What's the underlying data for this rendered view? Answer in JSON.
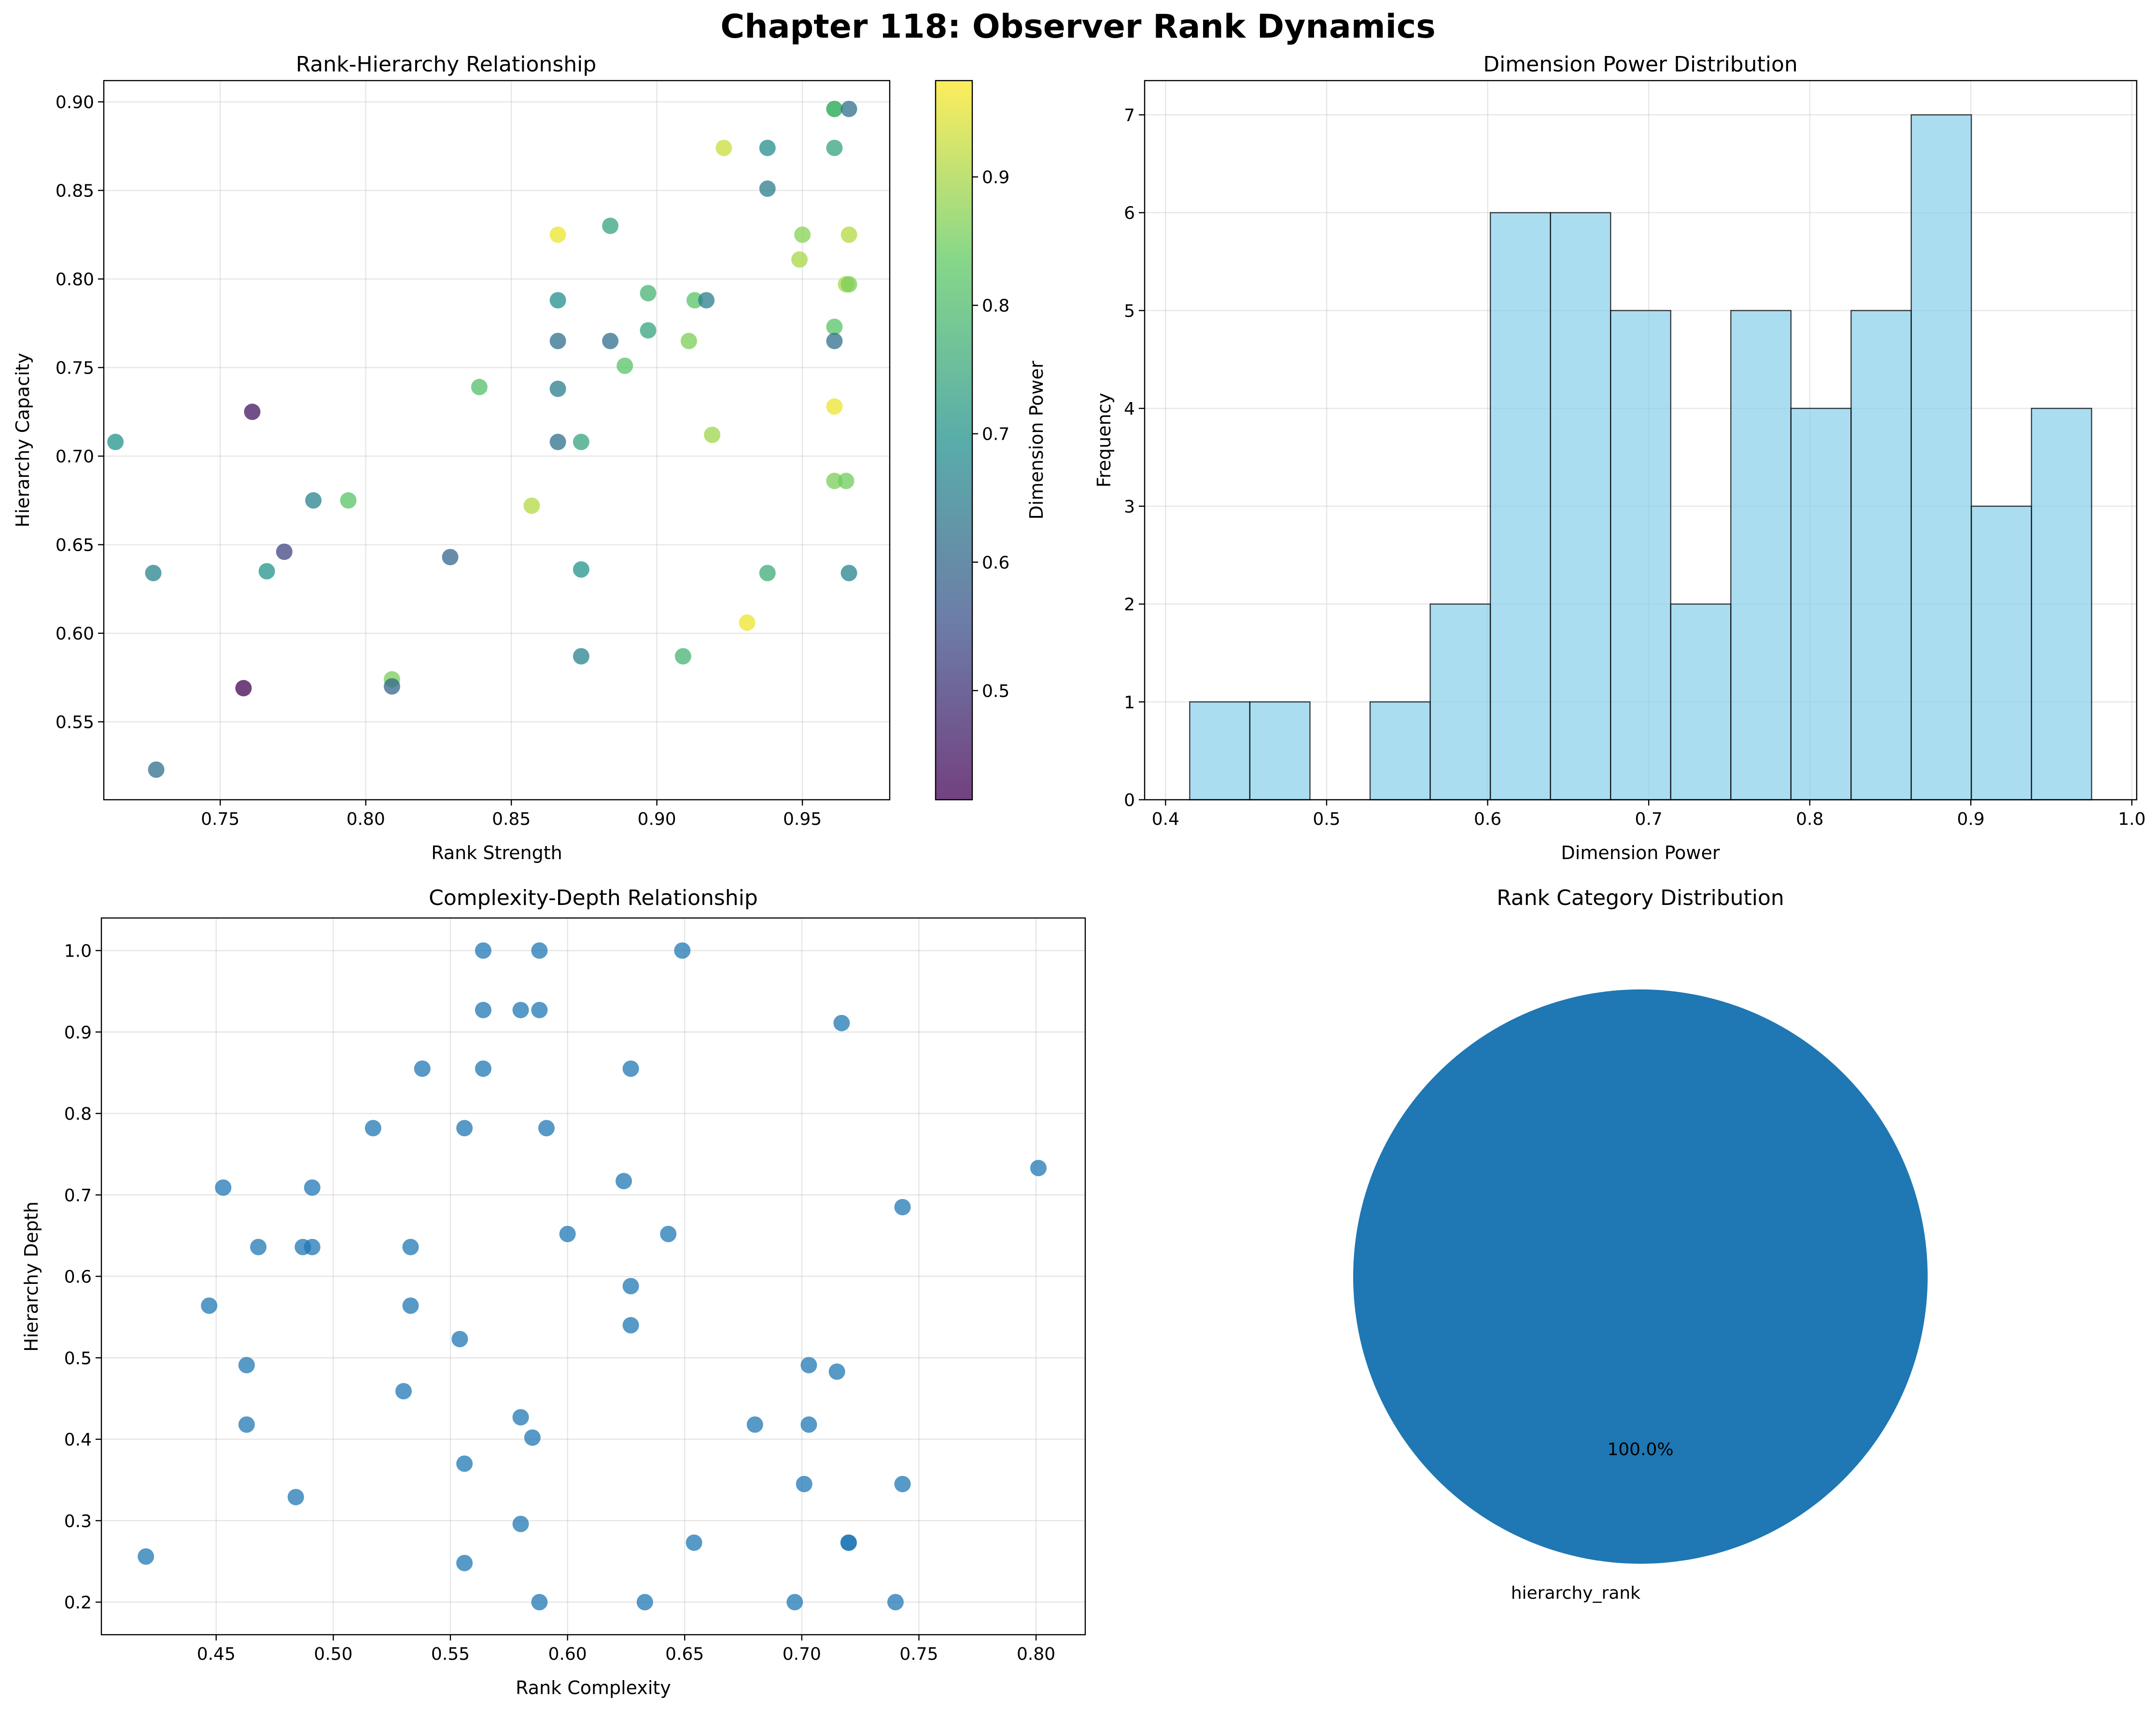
{
  "title": "Chapter 118: Observer Rank Dynamics",
  "chart_data": [
    {
      "type": "scatter",
      "title": "Rank-Hierarchy Relationship",
      "xlabel": "Rank Strength",
      "ylabel": "Hierarchy Capacity",
      "xlim": [
        0.71,
        0.98
      ],
      "ylim": [
        0.506,
        0.912
      ],
      "xticks": [
        0.75,
        0.8,
        0.85,
        0.9,
        0.95
      ],
      "yticks": [
        0.55,
        0.6,
        0.65,
        0.7,
        0.75,
        0.8,
        0.85,
        0.9
      ],
      "xtick_labels": [
        "0.75",
        "0.80",
        "0.85",
        "0.90",
        "0.95"
      ],
      "ytick_labels": [
        "0.55",
        "0.60",
        "0.65",
        "0.70",
        "0.75",
        "0.80",
        "0.85",
        "0.90"
      ],
      "grid": true,
      "colormap": "viridis",
      "colorbar": {
        "label": "Dimension Power",
        "range": [
          0.415,
          0.975
        ],
        "ticks": [
          0.5,
          0.6,
          0.7,
          0.8,
          0.9
        ],
        "tick_labels": [
          "0.5",
          "0.6",
          "0.7",
          "0.8",
          "0.9"
        ]
      },
      "points": [
        {
          "x": 0.714,
          "y": 0.708,
          "c": 0.7
        },
        {
          "x": 0.727,
          "y": 0.634,
          "c": 0.66
        },
        {
          "x": 0.728,
          "y": 0.523,
          "c": 0.62
        },
        {
          "x": 0.758,
          "y": 0.569,
          "c": 0.42
        },
        {
          "x": 0.761,
          "y": 0.725,
          "c": 0.45
        },
        {
          "x": 0.766,
          "y": 0.635,
          "c": 0.7
        },
        {
          "x": 0.772,
          "y": 0.646,
          "c": 0.53
        },
        {
          "x": 0.782,
          "y": 0.675,
          "c": 0.66
        },
        {
          "x": 0.794,
          "y": 0.675,
          "c": 0.82
        },
        {
          "x": 0.809,
          "y": 0.574,
          "c": 0.86
        },
        {
          "x": 0.809,
          "y": 0.57,
          "c": 0.6
        },
        {
          "x": 0.829,
          "y": 0.643,
          "c": 0.6
        },
        {
          "x": 0.839,
          "y": 0.739,
          "c": 0.81
        },
        {
          "x": 0.857,
          "y": 0.672,
          "c": 0.91
        },
        {
          "x": 0.866,
          "y": 0.825,
          "c": 0.96
        },
        {
          "x": 0.866,
          "y": 0.788,
          "c": 0.69
        },
        {
          "x": 0.866,
          "y": 0.765,
          "c": 0.62
        },
        {
          "x": 0.866,
          "y": 0.738,
          "c": 0.65
        },
        {
          "x": 0.866,
          "y": 0.708,
          "c": 0.62
        },
        {
          "x": 0.874,
          "y": 0.708,
          "c": 0.74
        },
        {
          "x": 0.874,
          "y": 0.636,
          "c": 0.7
        },
        {
          "x": 0.874,
          "y": 0.587,
          "c": 0.66
        },
        {
          "x": 0.884,
          "y": 0.83,
          "c": 0.74
        },
        {
          "x": 0.884,
          "y": 0.765,
          "c": 0.62
        },
        {
          "x": 0.889,
          "y": 0.751,
          "c": 0.82
        },
        {
          "x": 0.897,
          "y": 0.792,
          "c": 0.78
        },
        {
          "x": 0.897,
          "y": 0.771,
          "c": 0.74
        },
        {
          "x": 0.909,
          "y": 0.587,
          "c": 0.78
        },
        {
          "x": 0.911,
          "y": 0.765,
          "c": 0.86
        },
        {
          "x": 0.913,
          "y": 0.788,
          "c": 0.82
        },
        {
          "x": 0.917,
          "y": 0.788,
          "c": 0.65
        },
        {
          "x": 0.919,
          "y": 0.712,
          "c": 0.89
        },
        {
          "x": 0.923,
          "y": 0.874,
          "c": 0.93
        },
        {
          "x": 0.931,
          "y": 0.606,
          "c": 0.96
        },
        {
          "x": 0.938,
          "y": 0.874,
          "c": 0.69
        },
        {
          "x": 0.938,
          "y": 0.851,
          "c": 0.65
        },
        {
          "x": 0.938,
          "y": 0.634,
          "c": 0.76
        },
        {
          "x": 0.949,
          "y": 0.811,
          "c": 0.9
        },
        {
          "x": 0.95,
          "y": 0.825,
          "c": 0.87
        },
        {
          "x": 0.961,
          "y": 0.896,
          "c": 0.82
        },
        {
          "x": 0.961,
          "y": 0.896,
          "c": 0.78
        },
        {
          "x": 0.961,
          "y": 0.874,
          "c": 0.74
        },
        {
          "x": 0.961,
          "y": 0.773,
          "c": 0.82
        },
        {
          "x": 0.961,
          "y": 0.765,
          "c": 0.62
        },
        {
          "x": 0.961,
          "y": 0.728,
          "c": 0.96
        },
        {
          "x": 0.961,
          "y": 0.686,
          "c": 0.86
        },
        {
          "x": 0.965,
          "y": 0.797,
          "c": 0.9
        },
        {
          "x": 0.965,
          "y": 0.686,
          "c": 0.85
        },
        {
          "x": 0.966,
          "y": 0.896,
          "c": 0.62
        },
        {
          "x": 0.966,
          "y": 0.825,
          "c": 0.91
        },
        {
          "x": 0.966,
          "y": 0.797,
          "c": 0.86
        },
        {
          "x": 0.966,
          "y": 0.634,
          "c": 0.66
        }
      ]
    },
    {
      "type": "bar",
      "title": "Dimension Power Distribution",
      "xlabel": "Dimension Power",
      "ylabel": "Frequency",
      "xlim": [
        0.387,
        1.003
      ],
      "ylim": [
        0,
        7.35
      ],
      "xticks": [
        0.4,
        0.5,
        0.6,
        0.7,
        0.8,
        0.9,
        1.0
      ],
      "yticks": [
        0,
        1,
        2,
        3,
        4,
        5,
        6,
        7
      ],
      "xtick_labels": [
        "0.4",
        "0.5",
        "0.6",
        "0.7",
        "0.8",
        "0.9",
        "1.0"
      ],
      "ytick_labels": [
        "0",
        "1",
        "2",
        "3",
        "4",
        "5",
        "6",
        "7"
      ],
      "grid": true,
      "bin_start": 0.415,
      "bin_end": 0.975,
      "values": [
        1,
        1,
        0,
        1,
        2,
        6,
        6,
        5,
        2,
        5,
        4,
        5,
        7,
        3,
        4
      ],
      "color": "#87ceeb",
      "edgecolor": "#000000"
    },
    {
      "type": "scatter",
      "title": "Complexity-Depth Relationship",
      "xlabel": "Rank Complexity",
      "ylabel": "Hierarchy Depth",
      "xlim": [
        0.401,
        0.821
      ],
      "ylim": [
        0.16,
        1.04
      ],
      "xticks": [
        0.45,
        0.5,
        0.55,
        0.6,
        0.65,
        0.7,
        0.75,
        0.8
      ],
      "yticks": [
        0.2,
        0.3,
        0.4,
        0.5,
        0.6,
        0.7,
        0.8,
        0.9,
        1.0
      ],
      "xtick_labels": [
        "0.45",
        "0.50",
        "0.55",
        "0.60",
        "0.65",
        "0.70",
        "0.75",
        "0.80"
      ],
      "ytick_labels": [
        "0.2",
        "0.3",
        "0.4",
        "0.5",
        "0.6",
        "0.7",
        "0.8",
        "0.9",
        "1.0"
      ],
      "grid": true,
      "color": "#1f77b4",
      "points": [
        {
          "x": 0.42,
          "y": 0.256
        },
        {
          "x": 0.447,
          "y": 0.564
        },
        {
          "x": 0.453,
          "y": 0.709
        },
        {
          "x": 0.463,
          "y": 0.491
        },
        {
          "x": 0.463,
          "y": 0.418
        },
        {
          "x": 0.468,
          "y": 0.636
        },
        {
          "x": 0.484,
          "y": 0.329
        },
        {
          "x": 0.487,
          "y": 0.636
        },
        {
          "x": 0.491,
          "y": 0.709
        },
        {
          "x": 0.491,
          "y": 0.636
        },
        {
          "x": 0.517,
          "y": 0.782
        },
        {
          "x": 0.53,
          "y": 0.459
        },
        {
          "x": 0.533,
          "y": 0.636
        },
        {
          "x": 0.533,
          "y": 0.564
        },
        {
          "x": 0.538,
          "y": 0.855
        },
        {
          "x": 0.554,
          "y": 0.523
        },
        {
          "x": 0.556,
          "y": 0.782
        },
        {
          "x": 0.556,
          "y": 0.37
        },
        {
          "x": 0.556,
          "y": 0.248
        },
        {
          "x": 0.564,
          "y": 1.0
        },
        {
          "x": 0.564,
          "y": 0.927
        },
        {
          "x": 0.564,
          "y": 0.855
        },
        {
          "x": 0.58,
          "y": 0.927
        },
        {
          "x": 0.58,
          "y": 0.427
        },
        {
          "x": 0.58,
          "y": 0.296
        },
        {
          "x": 0.585,
          "y": 0.402
        },
        {
          "x": 0.588,
          "y": 1.0
        },
        {
          "x": 0.588,
          "y": 0.927
        },
        {
          "x": 0.588,
          "y": 0.2
        },
        {
          "x": 0.591,
          "y": 0.782
        },
        {
          "x": 0.6,
          "y": 0.652
        },
        {
          "x": 0.624,
          "y": 0.717
        },
        {
          "x": 0.627,
          "y": 0.855
        },
        {
          "x": 0.627,
          "y": 0.588
        },
        {
          "x": 0.627,
          "y": 0.54
        },
        {
          "x": 0.633,
          "y": 0.2
        },
        {
          "x": 0.643,
          "y": 0.652
        },
        {
          "x": 0.649,
          "y": 1.0
        },
        {
          "x": 0.654,
          "y": 0.273
        },
        {
          "x": 0.68,
          "y": 0.418
        },
        {
          "x": 0.697,
          "y": 0.2
        },
        {
          "x": 0.701,
          "y": 0.345
        },
        {
          "x": 0.703,
          "y": 0.491
        },
        {
          "x": 0.703,
          "y": 0.418
        },
        {
          "x": 0.715,
          "y": 0.483
        },
        {
          "x": 0.717,
          "y": 0.911
        },
        {
          "x": 0.72,
          "y": 0.273
        },
        {
          "x": 0.72,
          "y": 0.273
        },
        {
          "x": 0.74,
          "y": 0.2
        },
        {
          "x": 0.743,
          "y": 0.685
        },
        {
          "x": 0.743,
          "y": 0.345
        },
        {
          "x": 0.801,
          "y": 0.733
        }
      ]
    },
    {
      "type": "pie",
      "title": "Rank Category Distribution",
      "labels": [
        "hierarchy_rank"
      ],
      "values": [
        100.0
      ],
      "pct_labels": [
        "100.0%"
      ],
      "colors": [
        "#1f77b4"
      ]
    }
  ]
}
